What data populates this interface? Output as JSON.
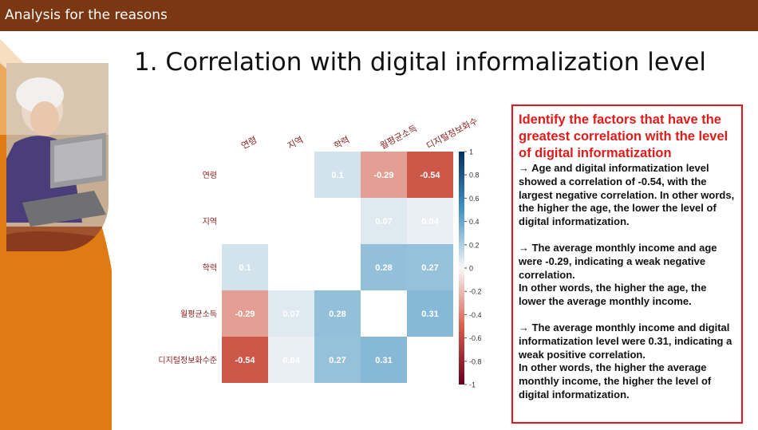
{
  "header": {
    "title": "Analysis for the reasons"
  },
  "slide": {
    "title": "1. Correlation with digital informalization level"
  },
  "chart_data": {
    "type": "heatmap",
    "variables": [
      "연령",
      "지역",
      "학력",
      "월평균소득",
      "디지털정보화수준"
    ],
    "column_labels": [
      "연령",
      "지역",
      "학력",
      "월평균소득",
      "디지털정보화수"
    ],
    "matrix": [
      [
        null,
        null,
        0.1,
        -0.29,
        -0.54
      ],
      [
        null,
        null,
        null,
        0.07,
        0.04
      ],
      [
        0.1,
        null,
        null,
        0.28,
        0.27
      ],
      [
        -0.29,
        0.07,
        0.28,
        null,
        0.31
      ],
      [
        -0.54,
        0.04,
        0.27,
        0.31,
        null
      ]
    ],
    "colorbar_ticks": [
      "1",
      "0.8",
      "0.6",
      "0.4",
      "0.2",
      "0",
      "-0.2",
      "-0.4",
      "-0.6",
      "-0.8",
      "-1"
    ],
    "colorbar_range": [
      -1,
      1
    ],
    "colors": {
      "negative": "#67001f",
      "neutral": "#f7f7f7",
      "positive": "#053061",
      "label": "#8b1a1a"
    }
  },
  "textbox": {
    "heading": "Identify the factors that have the greatest correlation with the level of digital informatization",
    "para1": "→ Age and digital informatization level showed a correlation of -0.54, with the largest negative correlation. In other words, the higher the age, the lower the level of digital informatization.",
    "para2": "→ The average monthly income and age were -0.29, indicating a weak negative correlation.\nIn other words, the higher the age, the lower the average monthly income.",
    "para3": "→ The average monthly income and digital informatization level were 0.31, indicating a weak positive correlation.\nIn other words, the higher the average monthly income, the higher the level of digital informatization."
  }
}
